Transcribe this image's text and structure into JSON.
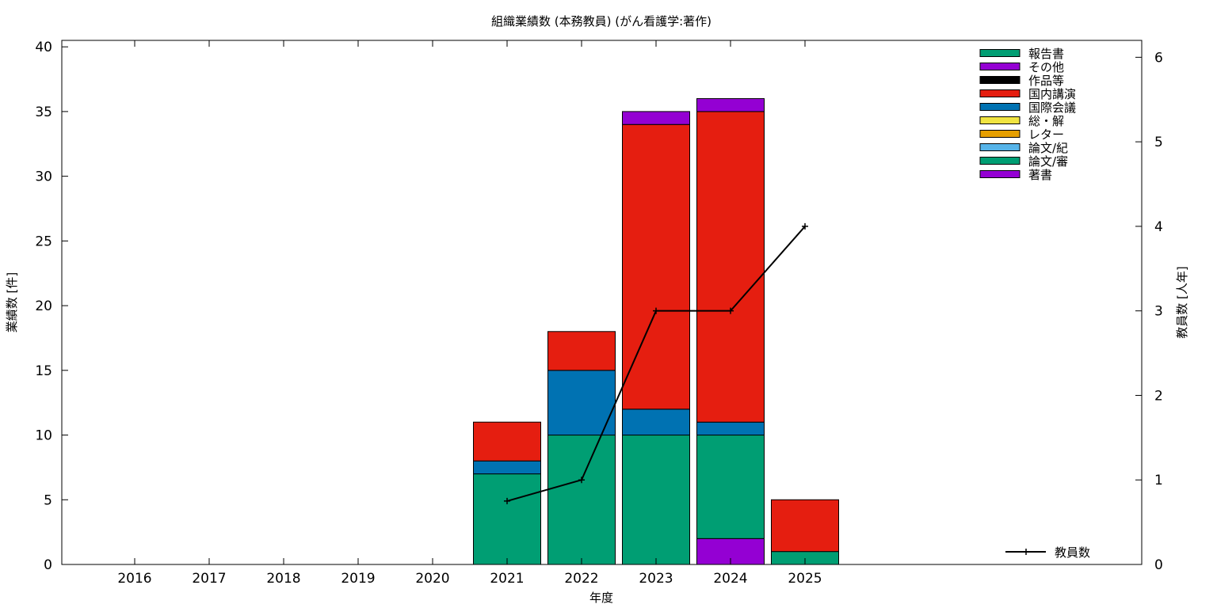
{
  "chart_data": {
    "type": "bar",
    "title": "組織業績数 (本務教員) (がん看護学:著作)",
    "xlabel": "年度",
    "ylabel": "業績数 [件]",
    "y2label": "教員数 [人年]",
    "categories": [
      "2016",
      "2017",
      "2018",
      "2019",
      "2020",
      "2021",
      "2022",
      "2023",
      "2024",
      "2025"
    ],
    "ylim": [
      0,
      40
    ],
    "y_ticks": [
      0,
      5,
      10,
      15,
      20,
      25,
      30,
      35,
      40
    ],
    "y2lim": [
      0,
      6
    ],
    "y2_ticks": [
      0,
      1,
      2,
      3,
      4,
      5,
      6
    ],
    "stacked": true,
    "series": [
      {
        "name": "著書",
        "color": "#9400d3",
        "values": [
          0,
          0,
          0,
          0,
          0,
          0,
          0,
          0,
          2,
          0
        ]
      },
      {
        "name": "論文/審",
        "color": "#009e73",
        "values": [
          0,
          0,
          0,
          0,
          0,
          7,
          10,
          10,
          8,
          1
        ]
      },
      {
        "name": "論文/紀",
        "color": "#56b4e9",
        "values": [
          0,
          0,
          0,
          0,
          0,
          0,
          0,
          0,
          0,
          0
        ]
      },
      {
        "name": "レター",
        "color": "#e69f00",
        "values": [
          0,
          0,
          0,
          0,
          0,
          0,
          0,
          0,
          0,
          0
        ]
      },
      {
        "name": "総・解",
        "color": "#f0e442",
        "values": [
          0,
          0,
          0,
          0,
          0,
          0,
          0,
          0,
          0,
          0
        ]
      },
      {
        "name": "国際会議",
        "color": "#0072b2",
        "values": [
          0,
          0,
          0,
          0,
          0,
          1,
          5,
          2,
          1,
          0
        ]
      },
      {
        "name": "国内講演",
        "color": "#e51e10",
        "values": [
          0,
          0,
          0,
          0,
          0,
          3,
          3,
          22,
          24,
          4
        ]
      },
      {
        "name": "作品等",
        "color": "#000000",
        "values": [
          0,
          0,
          0,
          0,
          0,
          0,
          0,
          0,
          0,
          0
        ]
      },
      {
        "name": "その他",
        "color": "#9400d3",
        "values": [
          0,
          0,
          0,
          0,
          0,
          0,
          0,
          1,
          1,
          0
        ]
      },
      {
        "name": "報告書",
        "color": "#009e73",
        "values": [
          0,
          0,
          0,
          0,
          0,
          0,
          0,
          0,
          0,
          0
        ]
      }
    ],
    "legend_order": [
      "報告書",
      "その他",
      "作品等",
      "国内講演",
      "国際会議",
      "総・解",
      "レター",
      "論文/紀",
      "論文/審",
      "著書"
    ],
    "line_series": {
      "name": "教員数",
      "color": "#000000",
      "axis": "y2",
      "points": [
        {
          "x": "2021",
          "y": 0.75
        },
        {
          "x": "2022",
          "y": 1
        },
        {
          "x": "2023",
          "y": 3
        },
        {
          "x": "2024",
          "y": 3
        },
        {
          "x": "2025",
          "y": 4
        }
      ]
    },
    "legend_position": "top-right",
    "line_legend_position": "bottom-right",
    "grid": false
  }
}
